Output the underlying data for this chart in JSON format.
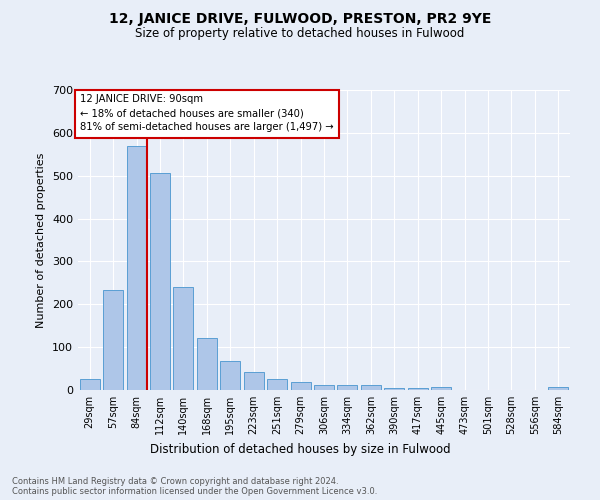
{
  "title": "12, JANICE DRIVE, FULWOOD, PRESTON, PR2 9YE",
  "subtitle": "Size of property relative to detached houses in Fulwood",
  "xlabel": "Distribution of detached houses by size in Fulwood",
  "ylabel": "Number of detached properties",
  "footnote1": "Contains HM Land Registry data © Crown copyright and database right 2024.",
  "footnote2": "Contains public sector information licensed under the Open Government Licence v3.0.",
  "bar_labels": [
    "29sqm",
    "57sqm",
    "84sqm",
    "112sqm",
    "140sqm",
    "168sqm",
    "195sqm",
    "223sqm",
    "251sqm",
    "279sqm",
    "306sqm",
    "334sqm",
    "362sqm",
    "390sqm",
    "417sqm",
    "445sqm",
    "473sqm",
    "501sqm",
    "528sqm",
    "556sqm",
    "584sqm"
  ],
  "bar_values": [
    25,
    233,
    570,
    507,
    240,
    122,
    67,
    43,
    25,
    18,
    12,
    11,
    11,
    5,
    5,
    8,
    0,
    0,
    0,
    0,
    6
  ],
  "bar_color": "#aec6e8",
  "bar_edge_color": "#5a9fd4",
  "background_color": "#e8eef8",
  "vline_color": "#cc0000",
  "annotation_text": "12 JANICE DRIVE: 90sqm\n← 18% of detached houses are smaller (340)\n81% of semi-detached houses are larger (1,497) →",
  "annotation_box_color": "#ffffff",
  "annotation_box_edge": "#cc0000",
  "ylim": [
    0,
    700
  ],
  "yticks": [
    0,
    100,
    200,
    300,
    400,
    500,
    600,
    700
  ],
  "property_bar_index": 2,
  "vline_x": 2.43
}
